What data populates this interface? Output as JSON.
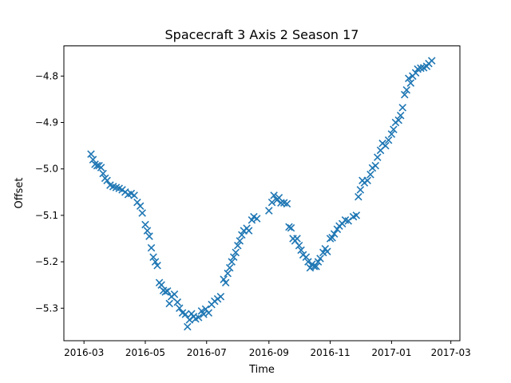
{
  "chart_data": {
    "type": "scatter",
    "title": "Spacecraft 3 Axis 2 Season 17",
    "xlabel": "Time",
    "ylabel": "Offset",
    "x_axis_type": "date",
    "xlim": [
      "2016-02-10",
      "2017-03-10"
    ],
    "ylim": [
      -5.37,
      -4.735
    ],
    "grid": false,
    "marker": "x",
    "marker_color": "#1f77b4",
    "x_ticks": [
      "2016-03-01",
      "2016-05-01",
      "2016-07-01",
      "2016-09-01",
      "2016-11-01",
      "2017-01-01",
      "2017-03-01"
    ],
    "x_tick_labels": [
      "2016-03",
      "2016-05",
      "2016-07",
      "2016-09",
      "2016-11",
      "2017-01",
      "2017-03"
    ],
    "y_ticks": [
      -5.3,
      -5.2,
      -5.1,
      -5.0,
      -4.9,
      -4.8
    ],
    "y_tick_labels": [
      "−5.3",
      "−5.2",
      "−5.1",
      "−5.0",
      "−4.9",
      "−4.8"
    ],
    "series": [
      {
        "points": [
          [
            "2016-03-08",
            -4.968
          ],
          [
            "2016-03-10",
            -4.98
          ],
          [
            "2016-03-12",
            -4.99
          ],
          [
            "2016-03-14",
            -4.993
          ],
          [
            "2016-03-16",
            -4.993
          ],
          [
            "2016-03-18",
            -4.997
          ],
          [
            "2016-03-20",
            -5.01
          ],
          [
            "2016-03-22",
            -5.02
          ],
          [
            "2016-03-24",
            -5.025
          ],
          [
            "2016-03-27",
            -5.035
          ],
          [
            "2016-03-30",
            -5.038
          ],
          [
            "2016-04-02",
            -5.04
          ],
          [
            "2016-04-05",
            -5.042
          ],
          [
            "2016-04-08",
            -5.045
          ],
          [
            "2016-04-11",
            -5.05
          ],
          [
            "2016-04-14",
            -5.055
          ],
          [
            "2016-04-17",
            -5.053
          ],
          [
            "2016-04-20",
            -5.057
          ],
          [
            "2016-04-23",
            -5.072
          ],
          [
            "2016-04-26",
            -5.08
          ],
          [
            "2016-04-28",
            -5.095
          ],
          [
            "2016-05-01",
            -5.12
          ],
          [
            "2016-05-03",
            -5.133
          ],
          [
            "2016-05-05",
            -5.145
          ],
          [
            "2016-05-07",
            -5.17
          ],
          [
            "2016-05-09",
            -5.19
          ],
          [
            "2016-05-11",
            -5.2
          ],
          [
            "2016-05-13",
            -5.208
          ],
          [
            "2016-05-15",
            -5.245
          ],
          [
            "2016-05-17",
            -5.25
          ],
          [
            "2016-05-19",
            -5.262
          ],
          [
            "2016-05-21",
            -5.265
          ],
          [
            "2016-05-23",
            -5.263
          ],
          [
            "2016-05-25",
            -5.29
          ],
          [
            "2016-05-27",
            -5.275
          ],
          [
            "2016-05-30",
            -5.27
          ],
          [
            "2016-06-02",
            -5.287
          ],
          [
            "2016-06-04",
            -5.3
          ],
          [
            "2016-06-07",
            -5.31
          ],
          [
            "2016-06-10",
            -5.313
          ],
          [
            "2016-06-12",
            -5.34
          ],
          [
            "2016-06-14",
            -5.325
          ],
          [
            "2016-06-16",
            -5.312
          ],
          [
            "2016-06-18",
            -5.318
          ],
          [
            "2016-06-20",
            -5.323
          ],
          [
            "2016-06-23",
            -5.32
          ],
          [
            "2016-06-26",
            -5.306
          ],
          [
            "2016-06-28",
            -5.313
          ],
          [
            "2016-06-30",
            -5.302
          ],
          [
            "2016-07-03",
            -5.31
          ],
          [
            "2016-07-06",
            -5.292
          ],
          [
            "2016-07-09",
            -5.285
          ],
          [
            "2016-07-12",
            -5.28
          ],
          [
            "2016-07-15",
            -5.275
          ],
          [
            "2016-07-18",
            -5.238
          ],
          [
            "2016-07-20",
            -5.245
          ],
          [
            "2016-07-22",
            -5.225
          ],
          [
            "2016-07-24",
            -5.213
          ],
          [
            "2016-07-26",
            -5.2
          ],
          [
            "2016-07-28",
            -5.19
          ],
          [
            "2016-07-30",
            -5.18
          ],
          [
            "2016-08-01",
            -5.165
          ],
          [
            "2016-08-03",
            -5.155
          ],
          [
            "2016-08-05",
            -5.142
          ],
          [
            "2016-08-07",
            -5.133
          ],
          [
            "2016-08-10",
            -5.128
          ],
          [
            "2016-08-12",
            -5.133
          ],
          [
            "2016-08-15",
            -5.11
          ],
          [
            "2016-08-17",
            -5.103
          ],
          [
            "2016-08-20",
            -5.107
          ],
          [
            "2016-09-01",
            -5.09
          ],
          [
            "2016-09-04",
            -5.072
          ],
          [
            "2016-09-06",
            -5.057
          ],
          [
            "2016-09-09",
            -5.067
          ],
          [
            "2016-09-11",
            -5.062
          ],
          [
            "2016-09-13",
            -5.073
          ],
          [
            "2016-09-16",
            -5.073
          ],
          [
            "2016-09-19",
            -5.075
          ],
          [
            "2016-09-21",
            -5.125
          ],
          [
            "2016-09-23",
            -5.127
          ],
          [
            "2016-09-25",
            -5.15
          ],
          [
            "2016-09-27",
            -5.155
          ],
          [
            "2016-09-29",
            -5.15
          ],
          [
            "2016-10-01",
            -5.165
          ],
          [
            "2016-10-03",
            -5.175
          ],
          [
            "2016-10-05",
            -5.185
          ],
          [
            "2016-10-08",
            -5.19
          ],
          [
            "2016-10-10",
            -5.2
          ],
          [
            "2016-10-12",
            -5.213
          ],
          [
            "2016-10-14",
            -5.205
          ],
          [
            "2016-10-16",
            -5.21
          ],
          [
            "2016-10-18",
            -5.21
          ],
          [
            "2016-10-20",
            -5.2
          ],
          [
            "2016-10-22",
            -5.193
          ],
          [
            "2016-10-25",
            -5.18
          ],
          [
            "2016-10-27",
            -5.172
          ],
          [
            "2016-10-29",
            -5.178
          ],
          [
            "2016-11-01",
            -5.15
          ],
          [
            "2016-11-03",
            -5.148
          ],
          [
            "2016-11-05",
            -5.14
          ],
          [
            "2016-11-08",
            -5.13
          ],
          [
            "2016-11-10",
            -5.123
          ],
          [
            "2016-11-13",
            -5.118
          ],
          [
            "2016-11-16",
            -5.11
          ],
          [
            "2016-11-19",
            -5.112
          ],
          [
            "2016-11-24",
            -5.103
          ],
          [
            "2016-11-27",
            -5.1
          ],
          [
            "2016-11-29",
            -5.06
          ],
          [
            "2016-12-01",
            -5.045
          ],
          [
            "2016-12-03",
            -5.025
          ],
          [
            "2016-12-05",
            -5.03
          ],
          [
            "2016-12-08",
            -5.025
          ],
          [
            "2016-12-11",
            -5.012
          ],
          [
            "2016-12-13",
            -4.998
          ],
          [
            "2016-12-16",
            -4.993
          ],
          [
            "2016-12-18",
            -4.975
          ],
          [
            "2016-12-21",
            -4.96
          ],
          [
            "2016-12-23",
            -4.945
          ],
          [
            "2016-12-26",
            -4.95
          ],
          [
            "2016-12-29",
            -4.938
          ],
          [
            "2017-01-01",
            -4.925
          ],
          [
            "2017-01-03",
            -4.915
          ],
          [
            "2017-01-05",
            -4.9
          ],
          [
            "2017-01-08",
            -4.895
          ],
          [
            "2017-01-10",
            -4.885
          ],
          [
            "2017-01-12",
            -4.868
          ],
          [
            "2017-01-14",
            -4.84
          ],
          [
            "2017-01-16",
            -4.83
          ],
          [
            "2017-01-18",
            -4.805
          ],
          [
            "2017-01-20",
            -4.815
          ],
          [
            "2017-01-22",
            -4.8
          ],
          [
            "2017-01-25",
            -4.793
          ],
          [
            "2017-01-27",
            -4.785
          ],
          [
            "2017-01-30",
            -4.783
          ],
          [
            "2017-02-02",
            -4.782
          ],
          [
            "2017-02-05",
            -4.779
          ],
          [
            "2017-02-07",
            -4.773
          ],
          [
            "2017-02-10",
            -4.767
          ]
        ]
      }
    ]
  }
}
